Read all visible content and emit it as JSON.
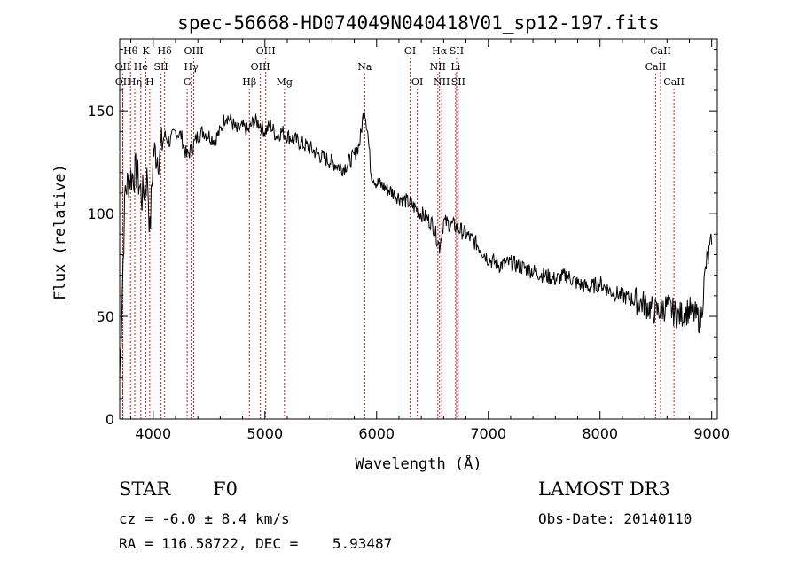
{
  "chart_data": {
    "type": "line",
    "title": "spec-56668-HD074049N040418V01_sp12-197.fits",
    "xlabel": "Wavelength (Å)",
    "ylabel": "Flux (relative)",
    "xlim": [
      3700,
      9050
    ],
    "ylim": [
      0,
      185
    ],
    "xticks": [
      4000,
      5000,
      6000,
      7000,
      8000,
      9000
    ],
    "yticks": [
      0,
      50,
      100,
      150
    ],
    "series": [
      {
        "name": "spectrum",
        "color": "#000000",
        "x": [
          3700,
          3750,
          3800,
          3850,
          3900,
          3950,
          3970,
          4000,
          4050,
          4100,
          4150,
          4200,
          4250,
          4300,
          4350,
          4400,
          4450,
          4500,
          4550,
          4600,
          4650,
          4700,
          4750,
          4800,
          4850,
          4900,
          4950,
          5000,
          5050,
          5100,
          5150,
          5200,
          5300,
          5400,
          5500,
          5600,
          5700,
          5800,
          5850,
          5890,
          5920,
          5950,
          6000,
          6100,
          6200,
          6300,
          6400,
          6500,
          6563,
          6600,
          6700,
          6800,
          6900,
          7000,
          7100,
          7200,
          7300,
          7400,
          7500,
          7600,
          7700,
          7800,
          7900,
          8000,
          8100,
          8200,
          8300,
          8400,
          8500,
          8600,
          8700,
          8800,
          8900,
          8950,
          9000
        ],
        "y": [
          20,
          112,
          118,
          120,
          108,
          118,
          90,
          130,
          128,
          138,
          135,
          140,
          138,
          128,
          132,
          138,
          140,
          138,
          136,
          140,
          148,
          145,
          140,
          142,
          140,
          145,
          144,
          140,
          143,
          138,
          140,
          138,
          135,
          132,
          128,
          125,
          122,
          128,
          135,
          152,
          140,
          120,
          115,
          112,
          108,
          105,
          100,
          95,
          84,
          96,
          94,
          90,
          85,
          78,
          75,
          76,
          74,
          72,
          70,
          68,
          70,
          66,
          64,
          66,
          62,
          60,
          58,
          56,
          52,
          55,
          50,
          53,
          48,
          75,
          85
        ]
      }
    ],
    "lines": [
      {
        "label": "Hθ",
        "x": 3797,
        "row": 0
      },
      {
        "label": "OII",
        "x": 3727,
        "row": 1
      },
      {
        "label": "OII",
        "x": 3729,
        "row": 2
      },
      {
        "label": "He",
        "x": 3889,
        "row": 1
      },
      {
        "label": "Hη",
        "x": 3835,
        "row": 2
      },
      {
        "label": "K",
        "x": 3934,
        "row": 0
      },
      {
        "label": "SII",
        "x": 4070,
        "row": 1
      },
      {
        "label": "H",
        "x": 3969,
        "row": 2
      },
      {
        "label": "Hδ",
        "x": 4102,
        "row": 0
      },
      {
        "label": "OIII",
        "x": 4363,
        "row": 0
      },
      {
        "label": "Hγ",
        "x": 4340,
        "row": 1
      },
      {
        "label": "G",
        "x": 4304,
        "row": 2
      },
      {
        "label": "Hβ",
        "x": 4861,
        "row": 2
      },
      {
        "label": "OIII",
        "x": 5007,
        "row": 0
      },
      {
        "label": "OIII",
        "x": 4959,
        "row": 1
      },
      {
        "label": "Mg",
        "x": 5175,
        "row": 2
      },
      {
        "label": "Na",
        "x": 5894,
        "row": 1
      },
      {
        "label": "OI",
        "x": 6300,
        "row": 0
      },
      {
        "label": "OI",
        "x": 6364,
        "row": 2
      },
      {
        "label": "Hα",
        "x": 6563,
        "row": 0
      },
      {
        "label": "NII",
        "x": 6548,
        "row": 1
      },
      {
        "label": "NII",
        "x": 6583,
        "row": 2
      },
      {
        "label": "SII",
        "x": 6716,
        "row": 0
      },
      {
        "label": "Li",
        "x": 6707,
        "row": 1
      },
      {
        "label": "SII",
        "x": 6731,
        "row": 2
      },
      {
        "label": "CaII",
        "x": 8542,
        "row": 0
      },
      {
        "label": "CaII",
        "x": 8498,
        "row": 1
      },
      {
        "label": "CaII",
        "x": 8662,
        "row": 2
      }
    ]
  },
  "info": {
    "class": "STAR",
    "subclass": "F0",
    "survey": "LAMOST DR3",
    "cz": "cz = -6.0 ± 8.4 km/s",
    "obs_date": "Obs-Date: 20140110",
    "radec": "RA = 116.58722, DEC =    5.93487"
  },
  "colors": {
    "line_marker": "#b22222",
    "spectrum": "#000000",
    "axis": "#000000"
  }
}
